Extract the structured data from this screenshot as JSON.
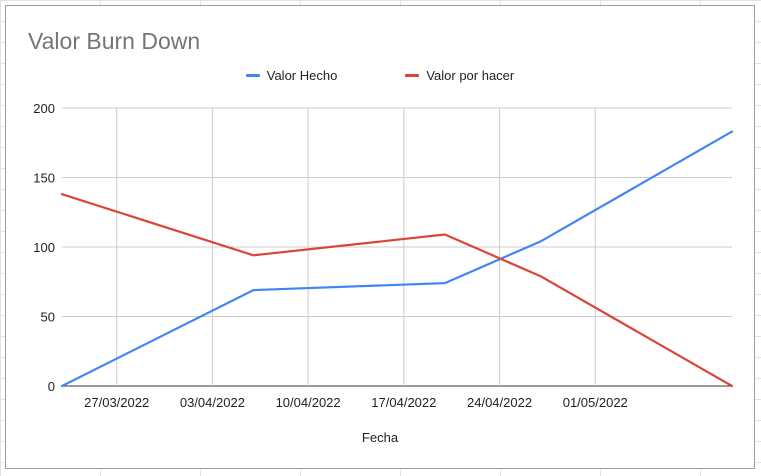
{
  "chart_data": {
    "type": "line",
    "title": "Valor Burn Down",
    "xlabel": "Fecha",
    "ylabel": "",
    "x_tick_labels": [
      "27/03/2022",
      "03/04/2022",
      "10/04/2022",
      "17/04/2022",
      "24/04/2022",
      "01/05/2022"
    ],
    "y_ticks": [
      0,
      50,
      100,
      150,
      200
    ],
    "ylim": [
      0,
      200
    ],
    "x_dates": [
      "2022-03-23",
      "2022-04-06",
      "2022-04-20",
      "2022-04-27",
      "2022-05-11"
    ],
    "x_range": [
      "2022-03-23",
      "2022-05-11"
    ],
    "series": [
      {
        "name": "Valor Hecho",
        "color": "#4285f4",
        "values": [
          0,
          69,
          74,
          104,
          183
        ]
      },
      {
        "name": "Valor por hacer",
        "color": "#db4437",
        "values": [
          138,
          94,
          109,
          79,
          0
        ]
      }
    ],
    "legend_position": "top",
    "grid": true
  }
}
